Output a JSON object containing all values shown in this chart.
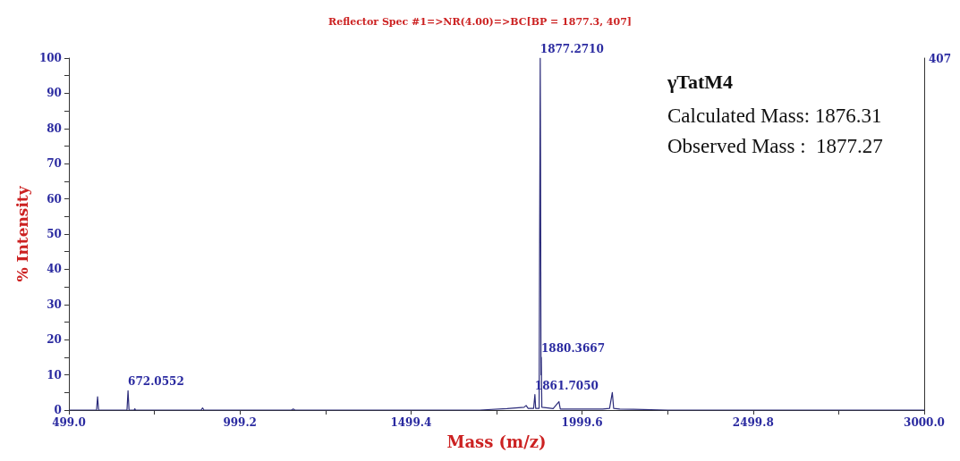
{
  "chart_data": {
    "type": "line",
    "title": "Reflector Spec #1=>NR(4.00)=>BC[BP = 1877.3, 407]",
    "xlabel": "Mass (m/z)",
    "ylabel": "% Intensity",
    "xlim": [
      499,
      3000
    ],
    "xticks": [
      {
        "value": 499,
        "label": "499.0"
      },
      {
        "value": 749.1,
        "label": null
      },
      {
        "value": 999.2,
        "label": "999.2"
      },
      {
        "value": 1249.3,
        "label": null
      },
      {
        "value": 1499.4,
        "label": "1499.4"
      },
      {
        "value": 1749.5,
        "label": null
      },
      {
        "value": 1999.6,
        "label": "1999.6"
      },
      {
        "value": 2249.7,
        "label": null
      },
      {
        "value": 2499.8,
        "label": "2499.8"
      },
      {
        "value": 2749.9,
        "label": null
      },
      {
        "value": 3000,
        "label": "3000.0"
      }
    ],
    "ylim": [
      0,
      100
    ],
    "yticks": [
      0,
      {
        "value": 5,
        "label": null
      },
      10,
      {
        "value": 15,
        "label": null
      },
      20,
      {
        "value": 25,
        "label": null
      },
      30,
      {
        "value": 35,
        "label": null
      },
      40,
      {
        "value": 45,
        "label": null
      },
      50,
      {
        "value": 55,
        "label": null
      },
      60,
      {
        "value": 65,
        "label": null
      },
      70,
      {
        "value": 75,
        "label": null
      },
      80,
      {
        "value": 85,
        "label": null
      },
      90,
      {
        "value": 95,
        "label": null
      },
      100
    ],
    "grid": false,
    "marker": "none",
    "line_style": "solid",
    "series": [
      {
        "color": "#2b2b7a",
        "x": [
          499,
          580,
          583,
          586,
          669,
          672.06,
          675,
          690,
          692,
          694,
          886,
          890,
          894,
          1150,
          1155,
          1160,
          1700,
          1780,
          1830,
          1836,
          1842,
          1858,
          1861.71,
          1864,
          1874,
          1877.27,
          1878.27,
          1879.5,
          1880.37,
          1882,
          1900,
          1915,
          1932,
          1936,
          2060,
          2080,
          2088,
          2092,
          2110,
          2150,
          2250,
          3000
        ],
        "values": [
          0,
          0,
          3.8,
          0,
          0,
          5.5,
          0,
          0,
          0.4,
          0,
          0,
          0.6,
          0,
          0,
          0.3,
          0,
          0,
          0.4,
          0.8,
          1.3,
          0.5,
          0.5,
          4.4,
          0.5,
          0.5,
          100,
          71,
          10,
          15,
          0.8,
          0.6,
          0.4,
          2.4,
          0.3,
          0.3,
          0.5,
          5,
          0.5,
          0.3,
          0.2,
          0,
          0
        ]
      }
    ],
    "annotations": [
      {
        "text": "1877.2710",
        "x": 1877.27,
        "y": 100
      },
      {
        "text": "1880.3667",
        "x": 1880.37,
        "y": 15
      },
      {
        "text": "1861.7050",
        "x": 1861.71,
        "y": 4.4
      },
      {
        "text": "672.0552",
        "x": 672.06,
        "y": 5.5
      },
      "407",
      "γTatM4",
      "Calculated Mass: 1876.31",
      "Observed Mass :  1877.27"
    ]
  }
}
